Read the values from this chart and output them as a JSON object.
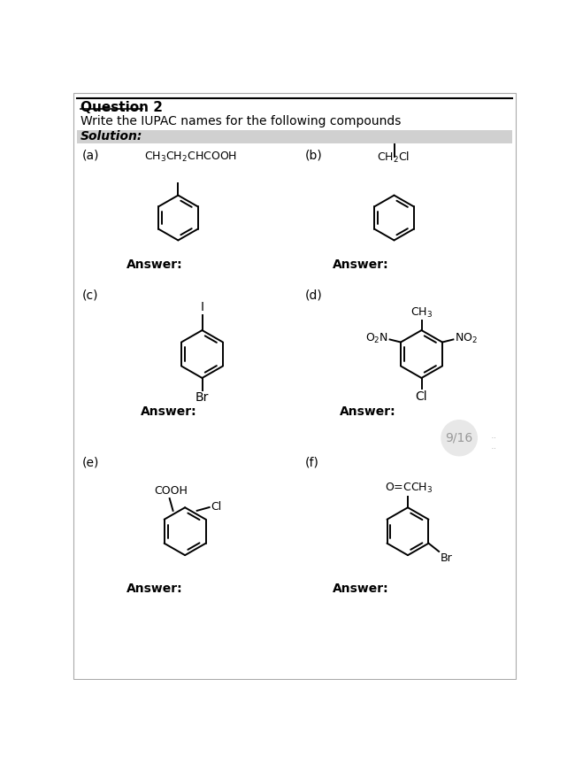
{
  "title": "Question 2",
  "subtitle": "Write the IUPAC names for the following compounds",
  "solution_label": "Solution:",
  "background_color": "#ffffff",
  "solution_bg": "#d0d0d0",
  "answer_label": "Answer:",
  "fig_width": 6.5,
  "fig_height": 8.63,
  "watermark": "9/16"
}
